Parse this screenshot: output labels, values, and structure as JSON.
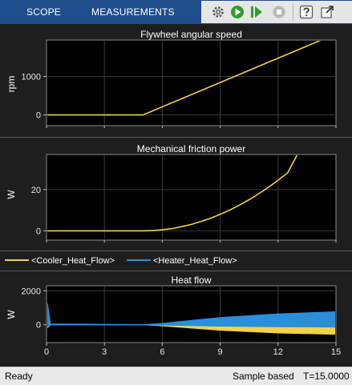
{
  "toolbar": {
    "tabs": [
      {
        "label": "SCOPE"
      },
      {
        "label": "MEASUREMENTS"
      }
    ],
    "icons": [
      "settings-icon",
      "run-icon",
      "step-forward-icon",
      "stop-icon",
      "help-icon",
      "undock-icon"
    ],
    "colors": {
      "bar": "#1f4e8c",
      "run": "#2e9e2e",
      "stop": "#9a9a9a"
    }
  },
  "chart_data": [
    {
      "type": "line",
      "title": "Flywheel angular speed",
      "ylabel": "rpm",
      "xlim": [
        0,
        15
      ],
      "ylim": [
        -280,
        1950
      ],
      "yticks": [
        0,
        1000
      ],
      "grid": true,
      "series": [
        {
          "color": "#f2d14b",
          "x": [
            0,
            5,
            15
          ],
          "y": [
            0,
            0,
            2110
          ]
        }
      ]
    },
    {
      "type": "line",
      "title": "Mechanical friction power",
      "ylabel": "W",
      "xlim": [
        0,
        15
      ],
      "ylim": [
        -4.5,
        37
      ],
      "yticks": [
        0,
        20
      ],
      "grid": true,
      "series": [
        {
          "color": "#f2d14b",
          "x": [
            0,
            5,
            5.5,
            6,
            6.5,
            7,
            7.5,
            8,
            8.5,
            9,
            9.5,
            10,
            10.5,
            11,
            11.5,
            12,
            12.5,
            13
          ],
          "y": [
            0,
            0,
            0.1,
            0.5,
            1.1,
            2,
            3.1,
            4.5,
            6.1,
            8,
            10.1,
            12.5,
            15.1,
            18,
            21.1,
            24.5,
            28.1,
            37
          ]
        }
      ]
    },
    {
      "type": "line",
      "title": "Heat flow",
      "ylabel": "W",
      "xlim": [
        0,
        15
      ],
      "ylim": [
        -1050,
        2300
      ],
      "xticks": [
        0,
        3,
        6,
        9,
        12,
        15
      ],
      "yticks": [
        0,
        2000
      ],
      "grid": true,
      "legend": "top",
      "series": [
        {
          "name": "<Cooler_Heat_Flow>",
          "color": "#f2d14b",
          "x": [
            0,
            0.05,
            0.2,
            5,
            6,
            9,
            12,
            15
          ],
          "upper": [
            0,
            -150,
            0,
            0,
            0,
            100,
            120,
            130
          ],
          "lower": [
            0,
            -150,
            0,
            0,
            -60,
            -320,
            -480,
            -560
          ]
        },
        {
          "name": "<Heater_Heat_Flow>",
          "color": "#2a8fd9",
          "x": [
            0,
            0.05,
            0.2,
            5,
            6,
            9,
            12,
            15
          ],
          "upper": [
            0,
            1250,
            50,
            0,
            80,
            420,
            640,
            760
          ],
          "lower": [
            0,
            0,
            0,
            0,
            -20,
            -80,
            -110,
            -130
          ]
        }
      ]
    }
  ],
  "status": {
    "left": "Ready",
    "mode": "Sample based",
    "time": "T=15.0000"
  }
}
